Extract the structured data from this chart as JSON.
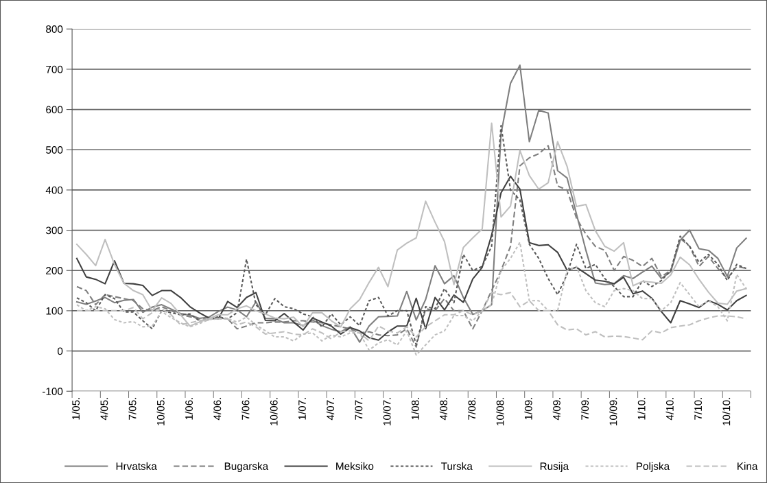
{
  "chart_data": {
    "type": "line",
    "categories": [
      "1/05.",
      null,
      null,
      "4/05.",
      null,
      null,
      "7/05.",
      null,
      null,
      "10/05.",
      null,
      null,
      "1/06.",
      null,
      null,
      "4/06.",
      null,
      null,
      "7/06.",
      null,
      null,
      "10/06.",
      null,
      null,
      "1/07.",
      null,
      null,
      "4/07.",
      null,
      null,
      "7/07.",
      null,
      null,
      "10/07.",
      null,
      null,
      "1/08.",
      null,
      null,
      "4/08.",
      null,
      null,
      "7/08.",
      null,
      null,
      "10/08.",
      null,
      null,
      "1/09.",
      null,
      null,
      "4/09.",
      null,
      null,
      "7/09.",
      null,
      null,
      "10/09.",
      null,
      null,
      "1/10.",
      null,
      null,
      "4/10.",
      null,
      null,
      "7/10.",
      null,
      null,
      "10/10.",
      null,
      null
    ],
    "series": [
      {
        "name": "Hrvatska",
        "color": "#7f7f7f",
        "line_style": "solid",
        "values": [
          122,
          116,
          124,
          133,
          120,
          126,
          128,
          96,
          109,
          115,
          104,
          93,
          89,
          81,
          84,
          98,
          109,
          102,
          85,
          122,
          81,
          80,
          70,
          70,
          63,
          77,
          63,
          54,
          48,
          60,
          22,
          62,
          85,
          86,
          87,
          148,
          77,
          128,
          212,
          167,
          187,
          133,
          91,
          100,
          115,
          540,
          665,
          710,
          520,
          598,
          591,
          448,
          430,
          340,
          250,
          169,
          165,
          167,
          187,
          180,
          196,
          211,
          180,
          197,
          275,
          300,
          254,
          250,
          230,
          185,
          256,
          280
        ]
      },
      {
        "name": "Bugarska",
        "color": "#7f7f7f",
        "line_style": "dashed",
        "values": [
          160,
          150,
          115,
          140,
          135,
          130,
          125,
          105,
          100,
          110,
          100,
          90,
          85,
          80,
          78,
          82,
          80,
          55,
          62,
          70,
          70,
          72,
          72,
          75,
          75,
          72,
          70,
          65,
          60,
          55,
          45,
          48,
          40,
          38,
          40,
          55,
          10,
          105,
          100,
          130,
          100,
          100,
          55,
          100,
          150,
          200,
          260,
          460,
          480,
          490,
          510,
          410,
          400,
          330,
          290,
          260,
          250,
          200,
          235,
          225,
          210,
          230,
          185,
          200,
          280,
          260,
          210,
          235,
          205,
          180,
          210,
          205
        ]
      },
      {
        "name": "Meksiko",
        "color": "#404040",
        "line_style": "solid",
        "values": [
          230,
          184,
          178,
          167,
          224,
          168,
          167,
          163,
          138,
          150,
          150,
          133,
          110,
          95,
          82,
          80,
          123,
          108,
          133,
          145,
          76,
          75,
          93,
          72,
          52,
          82,
          72,
          62,
          42,
          58,
          50,
          33,
          27,
          47,
          62,
          62,
          131,
          55,
          133,
          102,
          139,
          121,
          179,
          208,
          288,
          393,
          434,
          402,
          269,
          262,
          264,
          245,
          201,
          208,
          192,
          176,
          173,
          167,
          183,
          142,
          149,
          131,
          98,
          70,
          125,
          117,
          108,
          125,
          116,
          102,
          125,
          138
        ]
      },
      {
        "name": "Turska",
        "color": "#595959",
        "line_style": "dotted",
        "values": [
          132,
          120,
          100,
          140,
          130,
          97,
          97,
          75,
          55,
          100,
          95,
          90,
          92,
          75,
          78,
          85,
          80,
          95,
          228,
          115,
          90,
          130,
          110,
          105,
          92,
          85,
          60,
          92,
          65,
          85,
          63,
          125,
          133,
          87,
          100,
          100,
          15,
          110,
          105,
          155,
          120,
          240,
          200,
          210,
          260,
          560,
          400,
          375,
          265,
          230,
          180,
          140,
          190,
          265,
          205,
          215,
          180,
          160,
          135,
          135,
          175,
          160,
          175,
          200,
          285,
          260,
          220,
          240,
          215,
          175,
          215,
          205
        ]
      },
      {
        "name": "Rusija",
        "color": "#bfbfbf",
        "line_style": "solid",
        "values": [
          265,
          240,
          212,
          277,
          215,
          168,
          150,
          140,
          100,
          132,
          118,
          90,
          62,
          72,
          80,
          90,
          90,
          105,
          112,
          100,
          92,
          82,
          80,
          84,
          60,
          95,
          95,
          75,
          60,
          105,
          128,
          170,
          208,
          160,
          251,
          268,
          281,
          372,
          320,
          272,
          165,
          257,
          281,
          303,
          566,
          333,
          360,
          498,
          436,
          402,
          418,
          520,
          459,
          359,
          364,
          299,
          260,
          248,
          269,
          162,
          173,
          171,
          168,
          189,
          233,
          214,
          178,
          146,
          119,
          116,
          149,
          155
        ]
      },
      {
        "name": "Poljska",
        "color": "#bfbfbf",
        "line_style": "dotted",
        "values": [
          115,
          100,
          110,
          105,
          78,
          70,
          73,
          60,
          62,
          98,
          83,
          70,
          60,
          68,
          78,
          80,
          80,
          72,
          84,
          65,
          50,
          35,
          35,
          25,
          42,
          45,
          25,
          40,
          35,
          45,
          45,
          2,
          20,
          28,
          15,
          50,
          -10,
          15,
          40,
          50,
          88,
          88,
          75,
          100,
          115,
          200,
          230,
          270,
          125,
          125,
          100,
          100,
          200,
          210,
          150,
          120,
          110,
          150,
          155,
          150,
          130,
          130,
          100,
          120,
          170,
          140,
          110,
          125,
          110,
          75,
          190,
          155
        ]
      },
      {
        "name": "Kina",
        "color": "#bfbfbf",
        "line_style": "dashed",
        "values": [
          100,
          100,
          100,
          100,
          100,
          100,
          108,
          80,
          95,
          105,
          90,
          65,
          70,
          75,
          80,
          80,
          80,
          65,
          72,
          60,
          42,
          45,
          48,
          42,
          40,
          55,
          45,
          30,
          48,
          50,
          45,
          25,
          62,
          50,
          45,
          60,
          35,
          60,
          75,
          90,
          90,
          100,
          90,
          100,
          145,
          140,
          145,
          110,
          125,
          100,
          100,
          65,
          52,
          55,
          40,
          48,
          35,
          37,
          36,
          32,
          28,
          50,
          45,
          58,
          62,
          65,
          75,
          82,
          87,
          87,
          85,
          80
        ]
      }
    ],
    "ylim": [
      -100,
      800
    ],
    "yticks": [
      -100,
      0,
      100,
      200,
      300,
      400,
      500,
      600,
      700,
      800
    ],
    "grid": "y",
    "legend": "bottom",
    "marker": "none"
  }
}
